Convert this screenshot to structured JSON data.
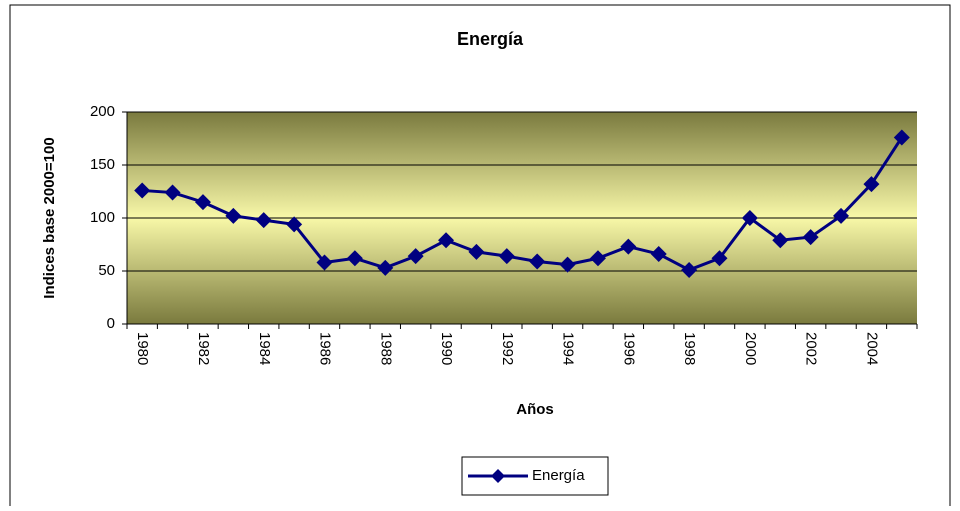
{
  "chart_data": {
    "type": "line",
    "title": "Energía",
    "x_label": "Años",
    "y_label": "Indices base 2000=100",
    "categories": [
      "1980",
      null,
      "1982",
      null,
      "1984",
      null,
      "1986",
      null,
      "1988",
      null,
      "1990",
      null,
      "1992",
      null,
      "1994",
      null,
      "1996",
      null,
      "1998",
      null,
      "2000",
      null,
      "2002",
      null,
      "2004",
      null
    ],
    "series": [
      {
        "name": "Energía",
        "color": "#000080",
        "values": [
          126,
          124,
          115,
          102,
          98,
          94,
          58,
          62,
          53,
          64,
          79,
          68,
          64,
          59,
          56,
          62,
          73,
          66,
          51,
          62,
          100,
          79,
          82,
          102,
          132,
          176
        ]
      }
    ],
    "ylim": [
      0,
      200
    ],
    "yticks": [
      0,
      50,
      100,
      150,
      200
    ],
    "grid": true,
    "legend": "bottom"
  }
}
